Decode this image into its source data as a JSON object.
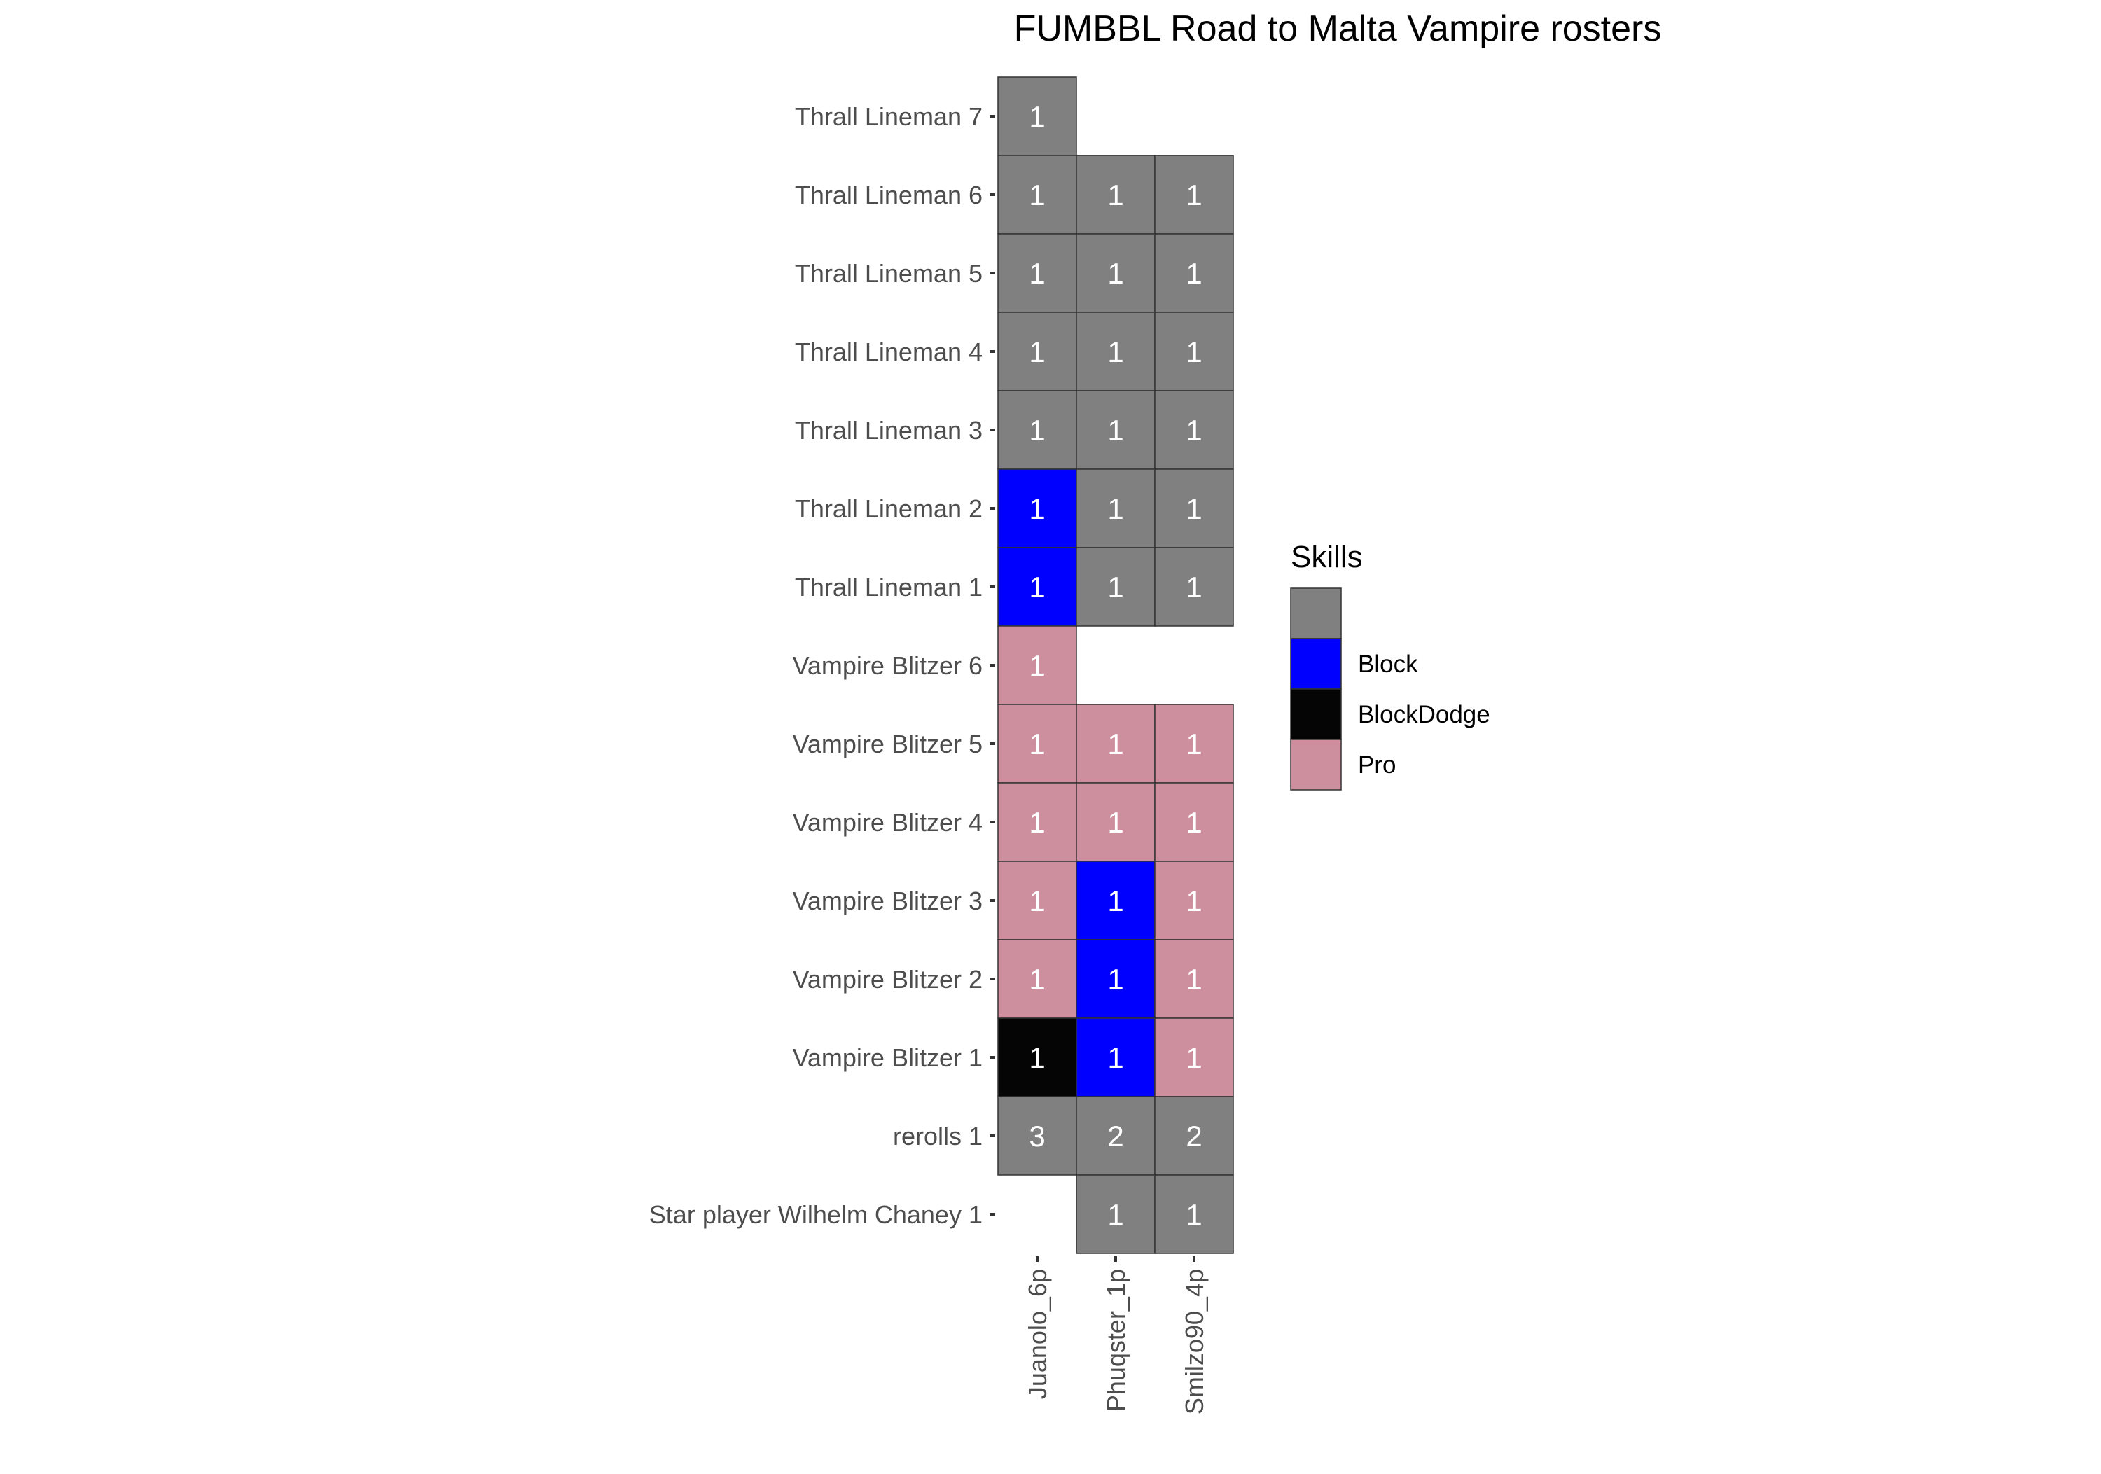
{
  "chart_data": {
    "type": "heatmap",
    "title": "FUMBBL Road to Malta Vampire rosters",
    "xlabel": "",
    "ylabel": "",
    "grid": false,
    "legend_position": "right",
    "x": [
      "Juanolo_6p",
      "Phuqster_1p",
      "Smilzo90_4p"
    ],
    "y": [
      "Thrall Lineman 7",
      "Thrall Lineman 6",
      "Thrall Lineman 5",
      "Thrall Lineman 4",
      "Thrall Lineman 3",
      "Thrall Lineman 2",
      "Thrall Lineman 1",
      "Vampire Blitzer 6",
      "Vampire Blitzer 5",
      "Vampire Blitzer 4",
      "Vampire Blitzer 3",
      "Vampire Blitzer 2",
      "Vampire Blitzer 1",
      "rerolls 1",
      "Star player Wilhelm Chaney 1"
    ],
    "legend": {
      "title": "Skills",
      "entries": [
        {
          "label": "",
          "color": "#808080"
        },
        {
          "label": "Block",
          "color": "#0000ff"
        },
        {
          "label": "BlockDodge",
          "color": "#050505"
        },
        {
          "label": "Pro",
          "color": "#cd8f9e"
        }
      ]
    },
    "cells": [
      {
        "x": "Juanolo_6p",
        "y": "Thrall Lineman 7",
        "value": 1,
        "skill": ""
      },
      {
        "x": "Juanolo_6p",
        "y": "Thrall Lineman 6",
        "value": 1,
        "skill": ""
      },
      {
        "x": "Phuqster_1p",
        "y": "Thrall Lineman 6",
        "value": 1,
        "skill": ""
      },
      {
        "x": "Smilzo90_4p",
        "y": "Thrall Lineman 6",
        "value": 1,
        "skill": ""
      },
      {
        "x": "Juanolo_6p",
        "y": "Thrall Lineman 5",
        "value": 1,
        "skill": ""
      },
      {
        "x": "Phuqster_1p",
        "y": "Thrall Lineman 5",
        "value": 1,
        "skill": ""
      },
      {
        "x": "Smilzo90_4p",
        "y": "Thrall Lineman 5",
        "value": 1,
        "skill": ""
      },
      {
        "x": "Juanolo_6p",
        "y": "Thrall Lineman 4",
        "value": 1,
        "skill": ""
      },
      {
        "x": "Phuqster_1p",
        "y": "Thrall Lineman 4",
        "value": 1,
        "skill": ""
      },
      {
        "x": "Smilzo90_4p",
        "y": "Thrall Lineman 4",
        "value": 1,
        "skill": ""
      },
      {
        "x": "Juanolo_6p",
        "y": "Thrall Lineman 3",
        "value": 1,
        "skill": ""
      },
      {
        "x": "Phuqster_1p",
        "y": "Thrall Lineman 3",
        "value": 1,
        "skill": ""
      },
      {
        "x": "Smilzo90_4p",
        "y": "Thrall Lineman 3",
        "value": 1,
        "skill": ""
      },
      {
        "x": "Juanolo_6p",
        "y": "Thrall Lineman 2",
        "value": 1,
        "skill": "Block"
      },
      {
        "x": "Phuqster_1p",
        "y": "Thrall Lineman 2",
        "value": 1,
        "skill": ""
      },
      {
        "x": "Smilzo90_4p",
        "y": "Thrall Lineman 2",
        "value": 1,
        "skill": ""
      },
      {
        "x": "Juanolo_6p",
        "y": "Thrall Lineman 1",
        "value": 1,
        "skill": "Block"
      },
      {
        "x": "Phuqster_1p",
        "y": "Thrall Lineman 1",
        "value": 1,
        "skill": ""
      },
      {
        "x": "Smilzo90_4p",
        "y": "Thrall Lineman 1",
        "value": 1,
        "skill": ""
      },
      {
        "x": "Juanolo_6p",
        "y": "Vampire Blitzer 6",
        "value": 1,
        "skill": "Pro"
      },
      {
        "x": "Juanolo_6p",
        "y": "Vampire Blitzer 5",
        "value": 1,
        "skill": "Pro"
      },
      {
        "x": "Phuqster_1p",
        "y": "Vampire Blitzer 5",
        "value": 1,
        "skill": "Pro"
      },
      {
        "x": "Smilzo90_4p",
        "y": "Vampire Blitzer 5",
        "value": 1,
        "skill": "Pro"
      },
      {
        "x": "Juanolo_6p",
        "y": "Vampire Blitzer 4",
        "value": 1,
        "skill": "Pro"
      },
      {
        "x": "Phuqster_1p",
        "y": "Vampire Blitzer 4",
        "value": 1,
        "skill": "Pro"
      },
      {
        "x": "Smilzo90_4p",
        "y": "Vampire Blitzer 4",
        "value": 1,
        "skill": "Pro"
      },
      {
        "x": "Juanolo_6p",
        "y": "Vampire Blitzer 3",
        "value": 1,
        "skill": "Pro"
      },
      {
        "x": "Phuqster_1p",
        "y": "Vampire Blitzer 3",
        "value": 1,
        "skill": "Block"
      },
      {
        "x": "Smilzo90_4p",
        "y": "Vampire Blitzer 3",
        "value": 1,
        "skill": "Pro"
      },
      {
        "x": "Juanolo_6p",
        "y": "Vampire Blitzer 2",
        "value": 1,
        "skill": "Pro"
      },
      {
        "x": "Phuqster_1p",
        "y": "Vampire Blitzer 2",
        "value": 1,
        "skill": "Block"
      },
      {
        "x": "Smilzo90_4p",
        "y": "Vampire Blitzer 2",
        "value": 1,
        "skill": "Pro"
      },
      {
        "x": "Juanolo_6p",
        "y": "Vampire Blitzer 1",
        "value": 1,
        "skill": "BlockDodge"
      },
      {
        "x": "Phuqster_1p",
        "y": "Vampire Blitzer 1",
        "value": 1,
        "skill": "Block"
      },
      {
        "x": "Smilzo90_4p",
        "y": "Vampire Blitzer 1",
        "value": 1,
        "skill": "Pro"
      },
      {
        "x": "Juanolo_6p",
        "y": "rerolls 1",
        "value": 3,
        "skill": ""
      },
      {
        "x": "Phuqster_1p",
        "y": "rerolls 1",
        "value": 2,
        "skill": ""
      },
      {
        "x": "Smilzo90_4p",
        "y": "rerolls 1",
        "value": 2,
        "skill": ""
      },
      {
        "x": "Phuqster_1p",
        "y": "Star player Wilhelm Chaney 1",
        "value": 1,
        "skill": ""
      },
      {
        "x": "Smilzo90_4p",
        "y": "Star player Wilhelm Chaney 1",
        "value": 1,
        "skill": ""
      }
    ]
  }
}
